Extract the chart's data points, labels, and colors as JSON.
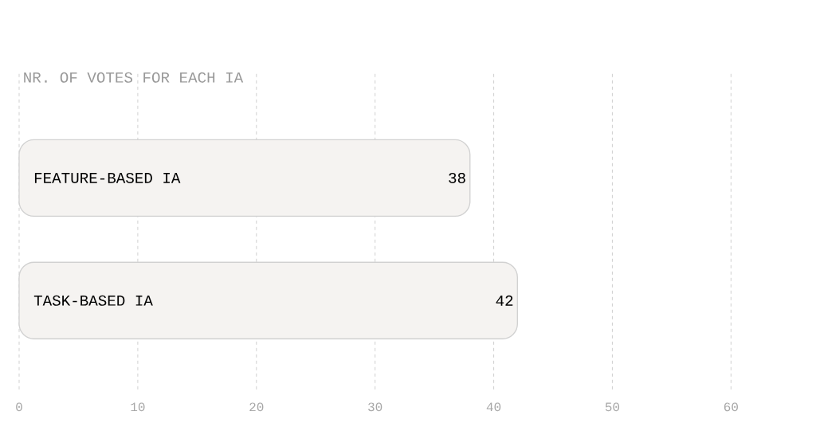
{
  "chart_data": {
    "type": "bar",
    "orientation": "horizontal",
    "title": "NR. OF VOTES FOR EACH IA",
    "categories": [
      "FEATURE-BASED IA",
      "TASK-BASED IA"
    ],
    "values": [
      38,
      42
    ],
    "color": "#f5f3f1",
    "data_labels": true,
    "grid": "x",
    "xlim": [
      0,
      60
    ],
    "xticks": [
      0,
      10,
      20,
      30,
      40,
      50,
      60
    ]
  }
}
